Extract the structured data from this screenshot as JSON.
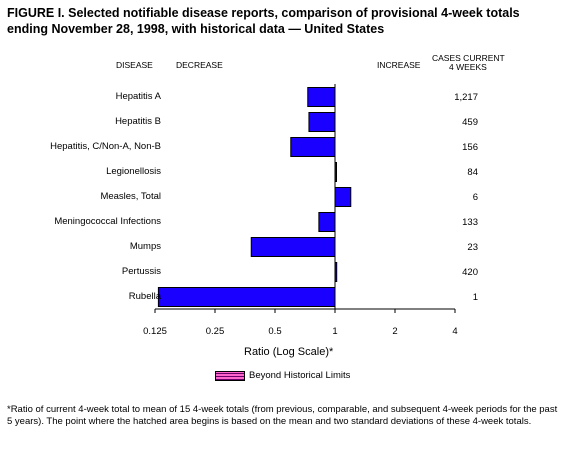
{
  "title": "FIGURE I. Selected notifiable disease reports, comparison of provisional 4-week totals ending November 28, 1998, with historical data — United States",
  "headers": {
    "disease": "DISEASE",
    "decrease": "DECREASE",
    "increase": "INCREASE",
    "cases_line1": "CASES CURRENT",
    "cases_line2": "4 WEEKS"
  },
  "chart_data": {
    "type": "bar",
    "orientation": "horizontal",
    "scale": "log2",
    "xlim": [
      0.125,
      4
    ],
    "xticks": [
      0.125,
      0.25,
      0.5,
      1,
      2,
      4
    ],
    "xtick_labels": [
      "0.125",
      "0.25",
      "0.5",
      "1",
      "2",
      "4"
    ],
    "xlabel": "Ratio (Log Scale)*",
    "bar_color": "#1a00ff",
    "hatch_color": "#ff66cc",
    "categories": [
      "Hepatitis A",
      "Hepatitis B",
      "Hepatitis, C/Non-A, Non-B",
      "Legionellosis",
      "Measles, Total",
      "Meningococcal Infections",
      "Mumps",
      "Pertussis",
      "Rubella"
    ],
    "values": [
      0.73,
      0.74,
      0.6,
      1.0,
      1.2,
      0.83,
      0.38,
      1.02,
      0.13
    ],
    "cases": [
      "1,217",
      "459",
      "156",
      "84",
      "6",
      "133",
      "23",
      "420",
      "1"
    ]
  },
  "legend": {
    "label": "Beyond Historical Limits"
  },
  "footnote": "*Ratio of current 4-week total to mean of 15 4-week totals (from previous, comparable, and subsequent 4-week periods for the past 5 years). The point where the hatched area begins is based on the mean and two standard deviations of these 4-week totals."
}
